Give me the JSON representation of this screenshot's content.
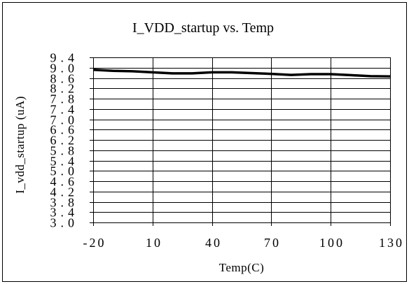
{
  "chart_data": {
    "type": "line",
    "title": "I_VDD_startup vs. Temp",
    "xlabel": "Temp(C)",
    "ylabel": "I_vdd_startup (uA)",
    "xlim": [
      -20,
      130
    ],
    "ylim": [
      3.0,
      9.4
    ],
    "x_ticks": [
      -20,
      10,
      40,
      70,
      100,
      130
    ],
    "x_tick_labels": [
      "-20",
      "10",
      "40",
      "70",
      "100",
      "130"
    ],
    "y_ticks": [
      3.0,
      3.4,
      3.8,
      4.2,
      4.6,
      5.0,
      5.4,
      5.8,
      6.2,
      6.6,
      7.0,
      7.4,
      7.8,
      8.2,
      8.6,
      9.0,
      9.4
    ],
    "y_tick_labels": [
      "3.0",
      "3.4",
      "3.8",
      "4.2",
      "4.6",
      "5.0",
      "5.4",
      "5.8",
      "6.2",
      "6.6",
      "7.0",
      "7.4",
      "7.8",
      "8.2",
      "8.6",
      "9.0",
      "9.4"
    ],
    "grid": {
      "horizontal": true,
      "vertical": true
    },
    "legend": false,
    "colors": {
      "background": "#ffffff",
      "grid": "#000000",
      "axis": "#000000",
      "text": "#000000"
    },
    "x": [
      -20,
      -10,
      0,
      10,
      20,
      30,
      40,
      50,
      60,
      70,
      80,
      90,
      100,
      110,
      120,
      130
    ],
    "series": [
      {
        "values": [
          8.92,
          8.88,
          8.86,
          8.82,
          8.78,
          8.78,
          8.82,
          8.82,
          8.79,
          8.76,
          8.72,
          8.75,
          8.75,
          8.71,
          8.67,
          8.66
        ],
        "color": "#000000"
      }
    ]
  }
}
